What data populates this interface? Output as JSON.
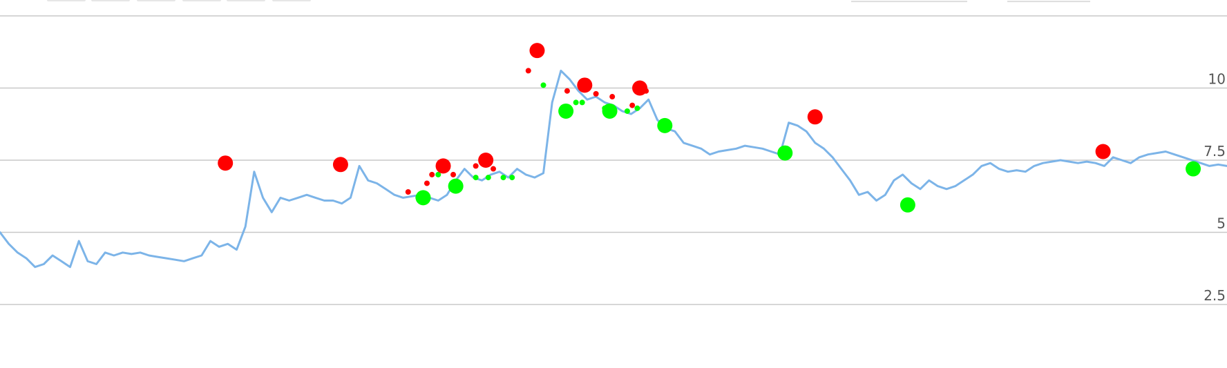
{
  "toolbar": {
    "range_buttons": [
      {
        "label": ""
      },
      {
        "label": ""
      },
      {
        "label": ""
      },
      {
        "label": ""
      },
      {
        "label": ""
      },
      {
        "label": ""
      }
    ],
    "date_inputs": [
      {
        "value": ""
      },
      {
        "value": ""
      }
    ]
  },
  "colors": {
    "line": "#7cb4e8",
    "sell": "#ff0000",
    "buy": "#00ff00",
    "grid": "#c8c8c8"
  },
  "chart_data": {
    "type": "line",
    "title": "",
    "xlabel": "",
    "ylabel": "",
    "ylim": [
      0.3,
      12.5
    ],
    "yticks": [
      {
        "value": 2.5,
        "label": "2.5"
      },
      {
        "value": 5,
        "label": "5"
      },
      {
        "value": 7.5,
        "label": "7.5"
      },
      {
        "value": 10,
        "label": "10"
      }
    ],
    "grid": true,
    "legend": "none",
    "x": [
      0,
      7,
      14,
      21,
      28,
      35,
      42,
      49,
      56,
      63,
      70,
      77,
      84,
      91,
      98,
      105,
      112,
      119,
      126,
      133,
      140,
      147,
      154,
      161,
      168,
      175,
      182,
      189,
      196,
      203,
      210,
      217,
      224,
      231,
      238,
      245,
      252,
      259,
      266,
      273,
      280,
      287,
      294,
      301,
      308,
      315,
      322,
      329,
      336,
      343,
      350,
      357,
      364,
      371,
      378,
      385,
      392,
      399,
      406,
      413,
      420,
      427,
      434,
      441,
      448,
      455,
      462,
      469,
      476,
      483,
      490,
      497,
      504,
      511,
      518,
      525,
      532,
      539,
      546,
      553,
      560,
      567,
      574,
      581,
      588,
      595,
      602,
      609,
      616,
      623,
      630,
      637,
      644,
      651,
      658,
      665,
      672,
      679,
      686,
      693,
      700,
      707,
      714,
      721,
      728,
      735,
      742,
      749,
      756,
      763,
      770,
      777,
      784,
      791,
      798,
      805,
      812,
      819,
      826,
      833,
      840,
      847,
      854,
      861,
      868,
      875,
      882,
      889,
      896,
      903,
      910,
      917,
      924,
      931,
      938,
      945,
      952,
      959,
      966,
      973,
      980
    ],
    "series": [
      {
        "name": "",
        "values": [
          5.0,
          4.6,
          4.3,
          4.1,
          3.8,
          3.9,
          4.2,
          4.0,
          3.8,
          4.7,
          4.0,
          3.9,
          4.3,
          4.2,
          4.3,
          4.25,
          4.3,
          4.2,
          4.15,
          4.1,
          4.05,
          4.0,
          4.1,
          4.2,
          4.7,
          4.5,
          4.6,
          4.4,
          5.2,
          7.1,
          6.2,
          5.7,
          6.2,
          6.1,
          6.2,
          6.3,
          6.2,
          6.1,
          6.1,
          6.0,
          6.2,
          7.3,
          6.8,
          6.7,
          6.5,
          6.3,
          6.2,
          6.25,
          6.3,
          6.2,
          6.1,
          6.3,
          6.8,
          7.2,
          6.9,
          6.8,
          7.0,
          7.1,
          6.9,
          7.2,
          7.0,
          6.9,
          7.05,
          9.5,
          10.6,
          10.3,
          9.9,
          9.6,
          9.7,
          9.5,
          9.4,
          9.2,
          9.1,
          9.3,
          9.6,
          8.9,
          8.6,
          8.5,
          8.1,
          8.0,
          7.9,
          7.7,
          7.8,
          7.85,
          7.9,
          8.0,
          7.95,
          7.9,
          7.8,
          7.7,
          8.8,
          8.7,
          8.5,
          8.1,
          7.9,
          7.6,
          7.2,
          6.8,
          6.3,
          6.4,
          6.1,
          6.3,
          6.8,
          7.0,
          6.7,
          6.5,
          6.8,
          6.6,
          6.5,
          6.6,
          6.8,
          7.0,
          7.3,
          7.4,
          7.2,
          7.1,
          7.15,
          7.1,
          7.3,
          7.4,
          7.45,
          7.5,
          7.45,
          7.4,
          7.45,
          7.4,
          7.3,
          7.6,
          7.5,
          7.4,
          7.6,
          7.7,
          7.75,
          7.8,
          7.7,
          7.6,
          7.5,
          7.4,
          7.3,
          7.35,
          7.3
        ]
      }
    ],
    "signals": [
      {
        "type": "sell",
        "x": 180,
        "y": 7.4,
        "size": "large"
      },
      {
        "type": "sell",
        "x": 272,
        "y": 7.35,
        "size": "large"
      },
      {
        "type": "sell",
        "x": 326,
        "y": 6.4,
        "size": "small"
      },
      {
        "type": "buy",
        "x": 334,
        "y": 6.2,
        "size": "small"
      },
      {
        "type": "buy",
        "x": 338,
        "y": 6.2,
        "size": "large"
      },
      {
        "type": "sell",
        "x": 341,
        "y": 6.7,
        "size": "small"
      },
      {
        "type": "sell",
        "x": 345,
        "y": 7.0,
        "size": "small"
      },
      {
        "type": "buy",
        "x": 350,
        "y": 7.0,
        "size": "small"
      },
      {
        "type": "sell",
        "x": 354,
        "y": 7.3,
        "size": "large"
      },
      {
        "type": "sell",
        "x": 362,
        "y": 7.0,
        "size": "small"
      },
      {
        "type": "buy",
        "x": 364,
        "y": 6.6,
        "size": "large"
      },
      {
        "type": "buy",
        "x": 380,
        "y": 6.9,
        "size": "small"
      },
      {
        "type": "sell",
        "x": 380,
        "y": 7.3,
        "size": "small"
      },
      {
        "type": "sell",
        "x": 388,
        "y": 7.5,
        "size": "large"
      },
      {
        "type": "buy",
        "x": 390,
        "y": 6.9,
        "size": "small"
      },
      {
        "type": "sell",
        "x": 394,
        "y": 7.2,
        "size": "small"
      },
      {
        "type": "buy",
        "x": 402,
        "y": 6.9,
        "size": "small"
      },
      {
        "type": "buy",
        "x": 409,
        "y": 6.9,
        "size": "small"
      },
      {
        "type": "sell",
        "x": 422,
        "y": 10.6,
        "size": "small"
      },
      {
        "type": "sell",
        "x": 429,
        "y": 11.3,
        "size": "large"
      },
      {
        "type": "buy",
        "x": 434,
        "y": 10.1,
        "size": "small"
      },
      {
        "type": "buy",
        "x": 452,
        "y": 9.2,
        "size": "large"
      },
      {
        "type": "sell",
        "x": 453,
        "y": 9.9,
        "size": "small"
      },
      {
        "type": "buy",
        "x": 460,
        "y": 9.5,
        "size": "small"
      },
      {
        "type": "buy",
        "x": 465,
        "y": 9.5,
        "size": "small"
      },
      {
        "type": "sell",
        "x": 467,
        "y": 10.1,
        "size": "large"
      },
      {
        "type": "sell",
        "x": 476,
        "y": 9.8,
        "size": "small"
      },
      {
        "type": "buy",
        "x": 483,
        "y": 9.3,
        "size": "small"
      },
      {
        "type": "buy",
        "x": 487,
        "y": 9.2,
        "size": "large"
      },
      {
        "type": "sell",
        "x": 489,
        "y": 9.7,
        "size": "small"
      },
      {
        "type": "buy",
        "x": 501,
        "y": 9.2,
        "size": "small"
      },
      {
        "type": "sell",
        "x": 505,
        "y": 9.4,
        "size": "small"
      },
      {
        "type": "buy",
        "x": 509,
        "y": 9.3,
        "size": "small"
      },
      {
        "type": "sell",
        "x": 511,
        "y": 10.0,
        "size": "large"
      },
      {
        "type": "sell",
        "x": 516,
        "y": 9.9,
        "size": "small"
      },
      {
        "type": "buy",
        "x": 531,
        "y": 8.7,
        "size": "large"
      },
      {
        "type": "buy",
        "x": 627,
        "y": 7.75,
        "size": "large"
      },
      {
        "type": "sell",
        "x": 651,
        "y": 9.0,
        "size": "large"
      },
      {
        "type": "buy",
        "x": 725,
        "y": 5.95,
        "size": "large"
      },
      {
        "type": "sell",
        "x": 881,
        "y": 7.8,
        "size": "large"
      },
      {
        "type": "buy",
        "x": 953,
        "y": 7.2,
        "size": "large"
      }
    ]
  }
}
